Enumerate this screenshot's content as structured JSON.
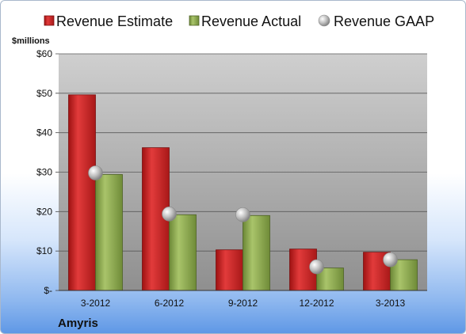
{
  "chart_data": {
    "type": "bar",
    "unit_label": "$millions",
    "company": "Amyris",
    "categories": [
      "3-2012",
      "6-2012",
      "9-2012",
      "12-2012",
      "3-2013"
    ],
    "series": [
      {
        "name": "Revenue Estimate",
        "kind": "bar",
        "color": "#cc1f1f",
        "values": [
          49.6,
          36.2,
          10.3,
          10.5,
          9.7
        ]
      },
      {
        "name": "Revenue Actual",
        "kind": "bar",
        "color": "#8aa64a",
        "values": [
          29.4,
          19.2,
          19.0,
          5.7,
          7.8
        ]
      },
      {
        "name": "Revenue GAAP",
        "kind": "marker",
        "color": "#c4c4c4",
        "values": [
          29.8,
          19.4,
          19.2,
          6.0,
          7.8
        ]
      }
    ],
    "ylim": [
      0,
      60
    ],
    "yticks": [
      0,
      10,
      20,
      30,
      40,
      50,
      60
    ],
    "ytick_labels": [
      "$-",
      "$10",
      "$20",
      "$30",
      "$40",
      "$50",
      "$60"
    ],
    "grid": true,
    "legend_position": "top"
  }
}
